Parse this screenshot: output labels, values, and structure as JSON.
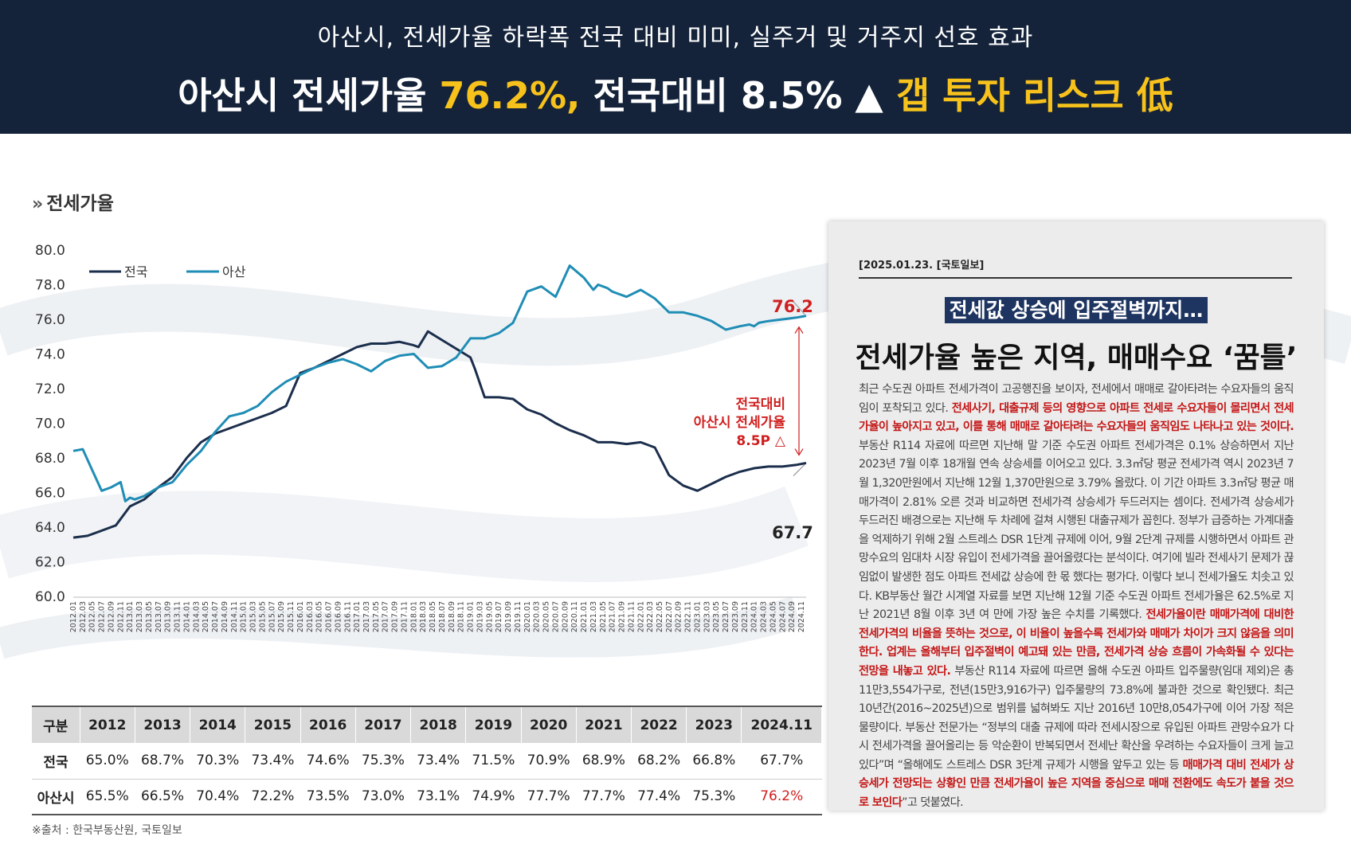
{
  "header": {
    "subtitle": "아산시, 전세가율 하락폭 전국 대비 미미, 실주거 및 거주지 선호 효과",
    "title_part1": "아산시 전세가율 ",
    "title_highlight1": "76.2%,",
    "title_part2": " 전국대비 8.5% ▲ ",
    "title_highlight2": "갭 투자 리스크 低"
  },
  "section": {
    "arrow": "»",
    "title": "전세가율"
  },
  "colors": {
    "header_bg": "#14233a",
    "highlight": "#f7c21b",
    "national": "#1b2e4c",
    "asan": "#1f8db5",
    "annotation": "#d01f1f"
  },
  "chart_data": {
    "type": "line",
    "title": "전세가율",
    "ylim": [
      60.0,
      80.0
    ],
    "yticks": [
      "80.0",
      "78.0",
      "76.0",
      "74.0",
      "72.0",
      "70.0",
      "68.0",
      "66.0",
      "64.0",
      "62.0",
      "60.0"
    ],
    "xticks": [
      "2012.01",
      "2012.03",
      "2012.05",
      "2012.07",
      "2012.09",
      "2012.11",
      "2013.01",
      "2013.03",
      "2013.05",
      "2013.07",
      "2013.09",
      "2013.11",
      "2014.01",
      "2014.03",
      "2014.05",
      "2014.07",
      "2014.09",
      "2014.11",
      "2015.01",
      "2015.03",
      "2015.05",
      "2015.07",
      "2015.09",
      "2015.11",
      "2016.01",
      "2016.03",
      "2016.05",
      "2016.07",
      "2016.09",
      "2016.11",
      "2017.01",
      "2017.03",
      "2017.05",
      "2017.07",
      "2017.09",
      "2017.11",
      "2018.01",
      "2018.03",
      "2018.05",
      "2018.07",
      "2018.09",
      "2018.11",
      "2019.01",
      "2019.03",
      "2019.05",
      "2019.07",
      "2019.09",
      "2019.11",
      "2020.01",
      "2020.03",
      "2020.05",
      "2020.07",
      "2020.09",
      "2020.11",
      "2021.01",
      "2021.03",
      "2021.05",
      "2021.07",
      "2021.09",
      "2021.11",
      "2022.01",
      "2022.03",
      "2022.05",
      "2022.07",
      "2022.09",
      "2022.11",
      "2023.01",
      "2023.03",
      "2023.05",
      "2023.07",
      "2023.09",
      "2023.11",
      "2024.01",
      "2024.03",
      "2024.05",
      "2024.07",
      "2024.09",
      "2024.11"
    ],
    "series": [
      {
        "name": "전국",
        "x_month_index": [
          0,
          3,
          6,
          9,
          12,
          15,
          18,
          21,
          24,
          27,
          30,
          33,
          36,
          39,
          42,
          45,
          48,
          51,
          54,
          57,
          60,
          63,
          66,
          69,
          72,
          73,
          75,
          78,
          81,
          84,
          85,
          87,
          90,
          93,
          96,
          99,
          102,
          105,
          108,
          111,
          114,
          117,
          120,
          123,
          126,
          129,
          132,
          135,
          138,
          141,
          144,
          147,
          150,
          153,
          155
        ],
        "values": [
          63.4,
          63.5,
          63.8,
          64.1,
          65.2,
          65.6,
          66.3,
          66.9,
          68.0,
          68.9,
          69.4,
          69.7,
          70.0,
          70.3,
          70.6,
          71.0,
          72.9,
          73.2,
          73.6,
          74.0,
          74.4,
          74.6,
          74.6,
          74.7,
          74.5,
          74.4,
          75.3,
          74.8,
          74.3,
          73.8,
          73.1,
          71.5,
          71.5,
          71.4,
          70.8,
          70.5,
          70.0,
          69.6,
          69.3,
          68.9,
          68.9,
          68.8,
          68.9,
          68.6,
          67.0,
          66.4,
          66.1,
          66.5,
          66.9,
          67.2,
          67.4,
          67.5,
          67.5,
          67.6,
          67.7
        ]
      },
      {
        "name": "아산",
        "x_month_index": [
          0,
          2,
          4,
          6,
          8,
          10,
          11,
          12,
          13,
          15,
          18,
          21,
          24,
          27,
          30,
          33,
          36,
          39,
          42,
          45,
          48,
          51,
          54,
          57,
          60,
          63,
          66,
          69,
          72,
          75,
          78,
          81,
          84,
          87,
          90,
          93,
          96,
          99,
          102,
          105,
          108,
          110,
          111,
          113,
          114,
          115,
          117,
          120,
          123,
          126,
          129,
          132,
          135,
          138,
          141,
          143,
          144,
          145,
          147,
          150,
          153,
          155
        ],
        "values": [
          68.4,
          68.5,
          67.3,
          66.1,
          66.3,
          66.6,
          65.5,
          65.7,
          65.6,
          65.8,
          66.3,
          66.6,
          67.6,
          68.4,
          69.5,
          70.4,
          70.6,
          71.0,
          71.8,
          72.4,
          72.8,
          73.2,
          73.5,
          73.7,
          73.4,
          73.0,
          73.6,
          73.9,
          74.0,
          73.2,
          73.3,
          73.8,
          74.9,
          74.9,
          75.2,
          75.8,
          77.6,
          77.9,
          77.3,
          79.1,
          78.4,
          77.7,
          78.0,
          77.8,
          77.6,
          77.5,
          77.3,
          77.7,
          77.2,
          76.4,
          76.4,
          76.2,
          75.9,
          75.4,
          75.6,
          75.7,
          75.6,
          75.8,
          75.9,
          76.0,
          76.1,
          76.2
        ]
      }
    ],
    "annotations": {
      "end_asan": "76.2",
      "end_national": "67.7",
      "gap_text": [
        "전국대비",
        "아산시 전세가율",
        "8.5P △"
      ]
    },
    "legend_position": "top-left"
  },
  "table": {
    "headers": [
      "구분",
      "2012",
      "2013",
      "2014",
      "2015",
      "2016",
      "2017",
      "2018",
      "2019",
      "2020",
      "2021",
      "2022",
      "2023",
      "2024.11"
    ],
    "rows": [
      [
        "전국",
        "65.0%",
        "68.7%",
        "70.3%",
        "73.4%",
        "74.6%",
        "75.3%",
        "73.4%",
        "71.5%",
        "70.9%",
        "68.9%",
        "68.2%",
        "66.8%",
        "67.7%"
      ],
      [
        "아산시",
        "65.5%",
        "66.5%",
        "70.4%",
        "72.2%",
        "73.5%",
        "73.0%",
        "73.1%",
        "74.9%",
        "77.7%",
        "77.7%",
        "77.4%",
        "75.3%",
        "76.2%"
      ]
    ]
  },
  "source": "※출처 : 한국부동산원, 국토일보",
  "article": {
    "date": "[2025.01.23.  [국토일보]",
    "kicker": "전세값 상승에 입주절벽까지…",
    "headline": "전세가율 높은 지역, 매매수요 ‘꿈틀’",
    "p1": "최근 수도권 아파트 전세가격이 고공행진을 보이자, 전세에서 매매로 갈아타려는 수요자들의 움직임이 포착되고 있다. ",
    "p1_red": "전세사기, 대출규제 등의 영향으로 아파트 전세로 수요자들이 몰리면서 전세가율이 높아지고 있고, 이를 통해 매매로 갈아타려는 수요자들의 움직임도 나타나고 있는 것이다.",
    "p2": " 부동산 R114 자료에 따르면 지난해 말 기준 수도권 아파트 전세가격은 0.1% 상승하면서 지난 2023년 7월 이후 18개월 연속 상승세를 이어오고 있다. 3.3㎡당 평균 전세가격 역시 2023년 7월 1,320만원에서 지난해 12월 1,370만원으로 3.79% 올랐다. 이 기간 아파트 3.3㎡당 평균 매매가격이 2.81% 오른 것과 비교하면 전세가격 상승세가 두드러지는 셈이다. 전세가격 상승세가 두드러진 배경으로는 지난해 두 차례에 걸쳐 시행된 대출규제가 꼽힌다. 정부가 급증하는 가계대출을 억제하기 위해 2월 스트레스 DSR 1단계 규제에 이어, 9월 2단계 규제를 시행하면서 아파트 관망수요의 임대차 시장 유입이 전세가격을 끌어올렸다는 분석이다. 여기에 빌라 전세사기 문제가 끊임없이 발생한 점도 아파트 전세값 상승에 한 몫 했다는 평가다. 이렇다 보니 전세가율도 치솟고 있다. KB부동산 월간 시계열 자료를 보면 지난해 12월 기준 수도권 아파트 전세가율은 62.5%로 지난 2021년 8월 이후 3년 여 만에 가장 높은 수치를 기록했다. ",
    "p2_red": "전세가율이란 매매가격에 대비한 전세가격의 비율을 뜻하는 것으로, 이 비율이 높을수록 전세가와 매매가 차이가 크지 않음을 의미한다. 업계는 올해부터 입주절벽이 예고돼 있는 만큼, 전세가격 상승 흐름이 가속화될 수 있다는 전망을 내놓고 있다.",
    "p3": " 부동산 R114 자료에 따르면 올해 수도권 아파트 입주물량(임대 제외)은 총 11만3,554가구로, 전년(15만3,916가구) 입주물량의 73.8%에 불과한 것으로 확인됐다. 최근 10년간(2016~2025년)으로 범위를 넓혀봐도 지난 2016년 10만8,054가구에 이어 가장 적은 물량이다. 부동산 전문가는 “정부의 대출 규제에 따라 전세시장으로 유입된 아파트 관망수요가 다시 전세가격을 끌어올리는 등 악순환이 반복되면서 전세난 확산을 우려하는 수요자들이 크게 늘고 있다”며 “올해에도 스트레스 DSR 3단계 규제가 시행을 앞두고 있는 등 ",
    "p3_red": "매매가격 대비 전세가 상승세가 전망되는 상황인 만큼 전세가율이 높은 지역을 중심으로 매매 전환에도 속도가 붙을 것으로 보인다",
    "p3_end": "”고 덧붙였다."
  }
}
